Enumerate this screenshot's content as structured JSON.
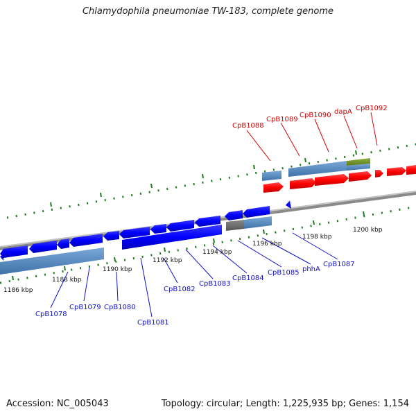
{
  "title": "Chlamydophila pneumoniae TW-183, complete genome",
  "footer": {
    "accession": "Accession: NC_005043",
    "summary": "Topology: circular; Length: 1,225,935 bp; Genes: 1,154"
  },
  "colors": {
    "plus_strand_gene": "#ff0000",
    "minus_strand_gene": "#0000ff",
    "plus_strand_label": "#d40000",
    "minus_strand_label": "#1010c8",
    "cds_band": "#4f86c0",
    "rna_band": "#6b8e23",
    "pseudo_band": "#6d6d6d",
    "tick": "#1f7a1f",
    "backbone": "#8a8a8a"
  },
  "scale": {
    "labels": [
      "1186 kbp",
      "1188 kbp",
      "1190 kbp",
      "1192 kbp",
      "1194 kbp",
      "1196 kbp",
      "1198 kbp",
      "1200 kbp"
    ]
  },
  "plus_strand_labels": [
    "CpB1088",
    "CpB1089",
    "CpB1090",
    "dapA",
    "CpB1092"
  ],
  "minus_strand_labels": [
    "CpB1078",
    "CpB1079",
    "CpB1080",
    "CpB1081",
    "CpB1082",
    "CpB1083",
    "CpB1084",
    "CpB1085",
    "phhA",
    "CpB1087"
  ]
}
